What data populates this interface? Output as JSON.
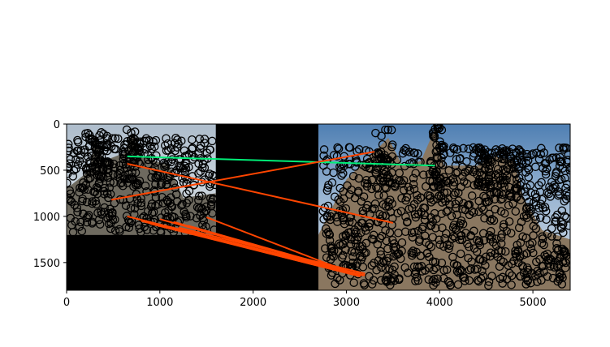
{
  "chart_data": {
    "type": "scatter",
    "title": "",
    "xlabel": "",
    "ylabel": "",
    "xlim": [
      0,
      5400
    ],
    "ylim": [
      1800,
      0
    ],
    "y_axis_inverted": true,
    "grid": false,
    "x_ticks": [
      0,
      1000,
      2000,
      3000,
      4000,
      5000
    ],
    "x_tick_labels": [
      "0",
      "1000",
      "2000",
      "3000",
      "4000",
      "5000"
    ],
    "y_ticks": [
      0,
      500,
      1000,
      1500
    ],
    "y_tick_labels": [
      "0",
      "500",
      "1000",
      "1500"
    ],
    "background_image": "two photographs side by side (left image 0-1600 wide, right image 2700-5400 wide) with black padding, keypoints drawn as hollow black circles",
    "colors": {
      "inlier": "#00ee77",
      "outlier": "#ff4500",
      "keypoint": "#000000",
      "padding": "#000000"
    },
    "matches": [
      {
        "x": [
          650,
          3950
        ],
        "y": [
          350,
          450
        ],
        "kind": "inlier"
      },
      {
        "x": [
          650,
          3500
        ],
        "y": [
          430,
          1070
        ],
        "kind": "outlier"
      },
      {
        "x": [
          480,
          3300
        ],
        "y": [
          820,
          300
        ],
        "kind": "outlier"
      },
      {
        "x": [
          650,
          3200
        ],
        "y": [
          1000,
          1640
        ],
        "kind": "outlier"
      },
      {
        "x": [
          1500,
          3150
        ],
        "y": [
          1010,
          1650
        ],
        "kind": "outlier"
      },
      {
        "x": [
          900,
          3150
        ],
        "y": [
          1080,
          1650
        ],
        "kind": "outlier"
      },
      {
        "x": [
          1000,
          3180
        ],
        "y": [
          1030,
          1640
        ],
        "kind": "outlier"
      },
      {
        "x": [
          1050,
          3150
        ],
        "y": [
          1100,
          1640
        ],
        "kind": "outlier"
      },
      {
        "x": [
          1150,
          3150
        ],
        "y": [
          1060,
          1650
        ],
        "kind": "outlier"
      },
      {
        "x": [
          1200,
          3200
        ],
        "y": [
          1120,
          1620
        ],
        "kind": "outlier"
      },
      {
        "x": [
          800,
          3150
        ],
        "y": [
          1050,
          1650
        ],
        "kind": "outlier"
      },
      {
        "x": [
          1300,
          3180
        ],
        "y": [
          1100,
          1640
        ],
        "kind": "outlier"
      }
    ]
  }
}
